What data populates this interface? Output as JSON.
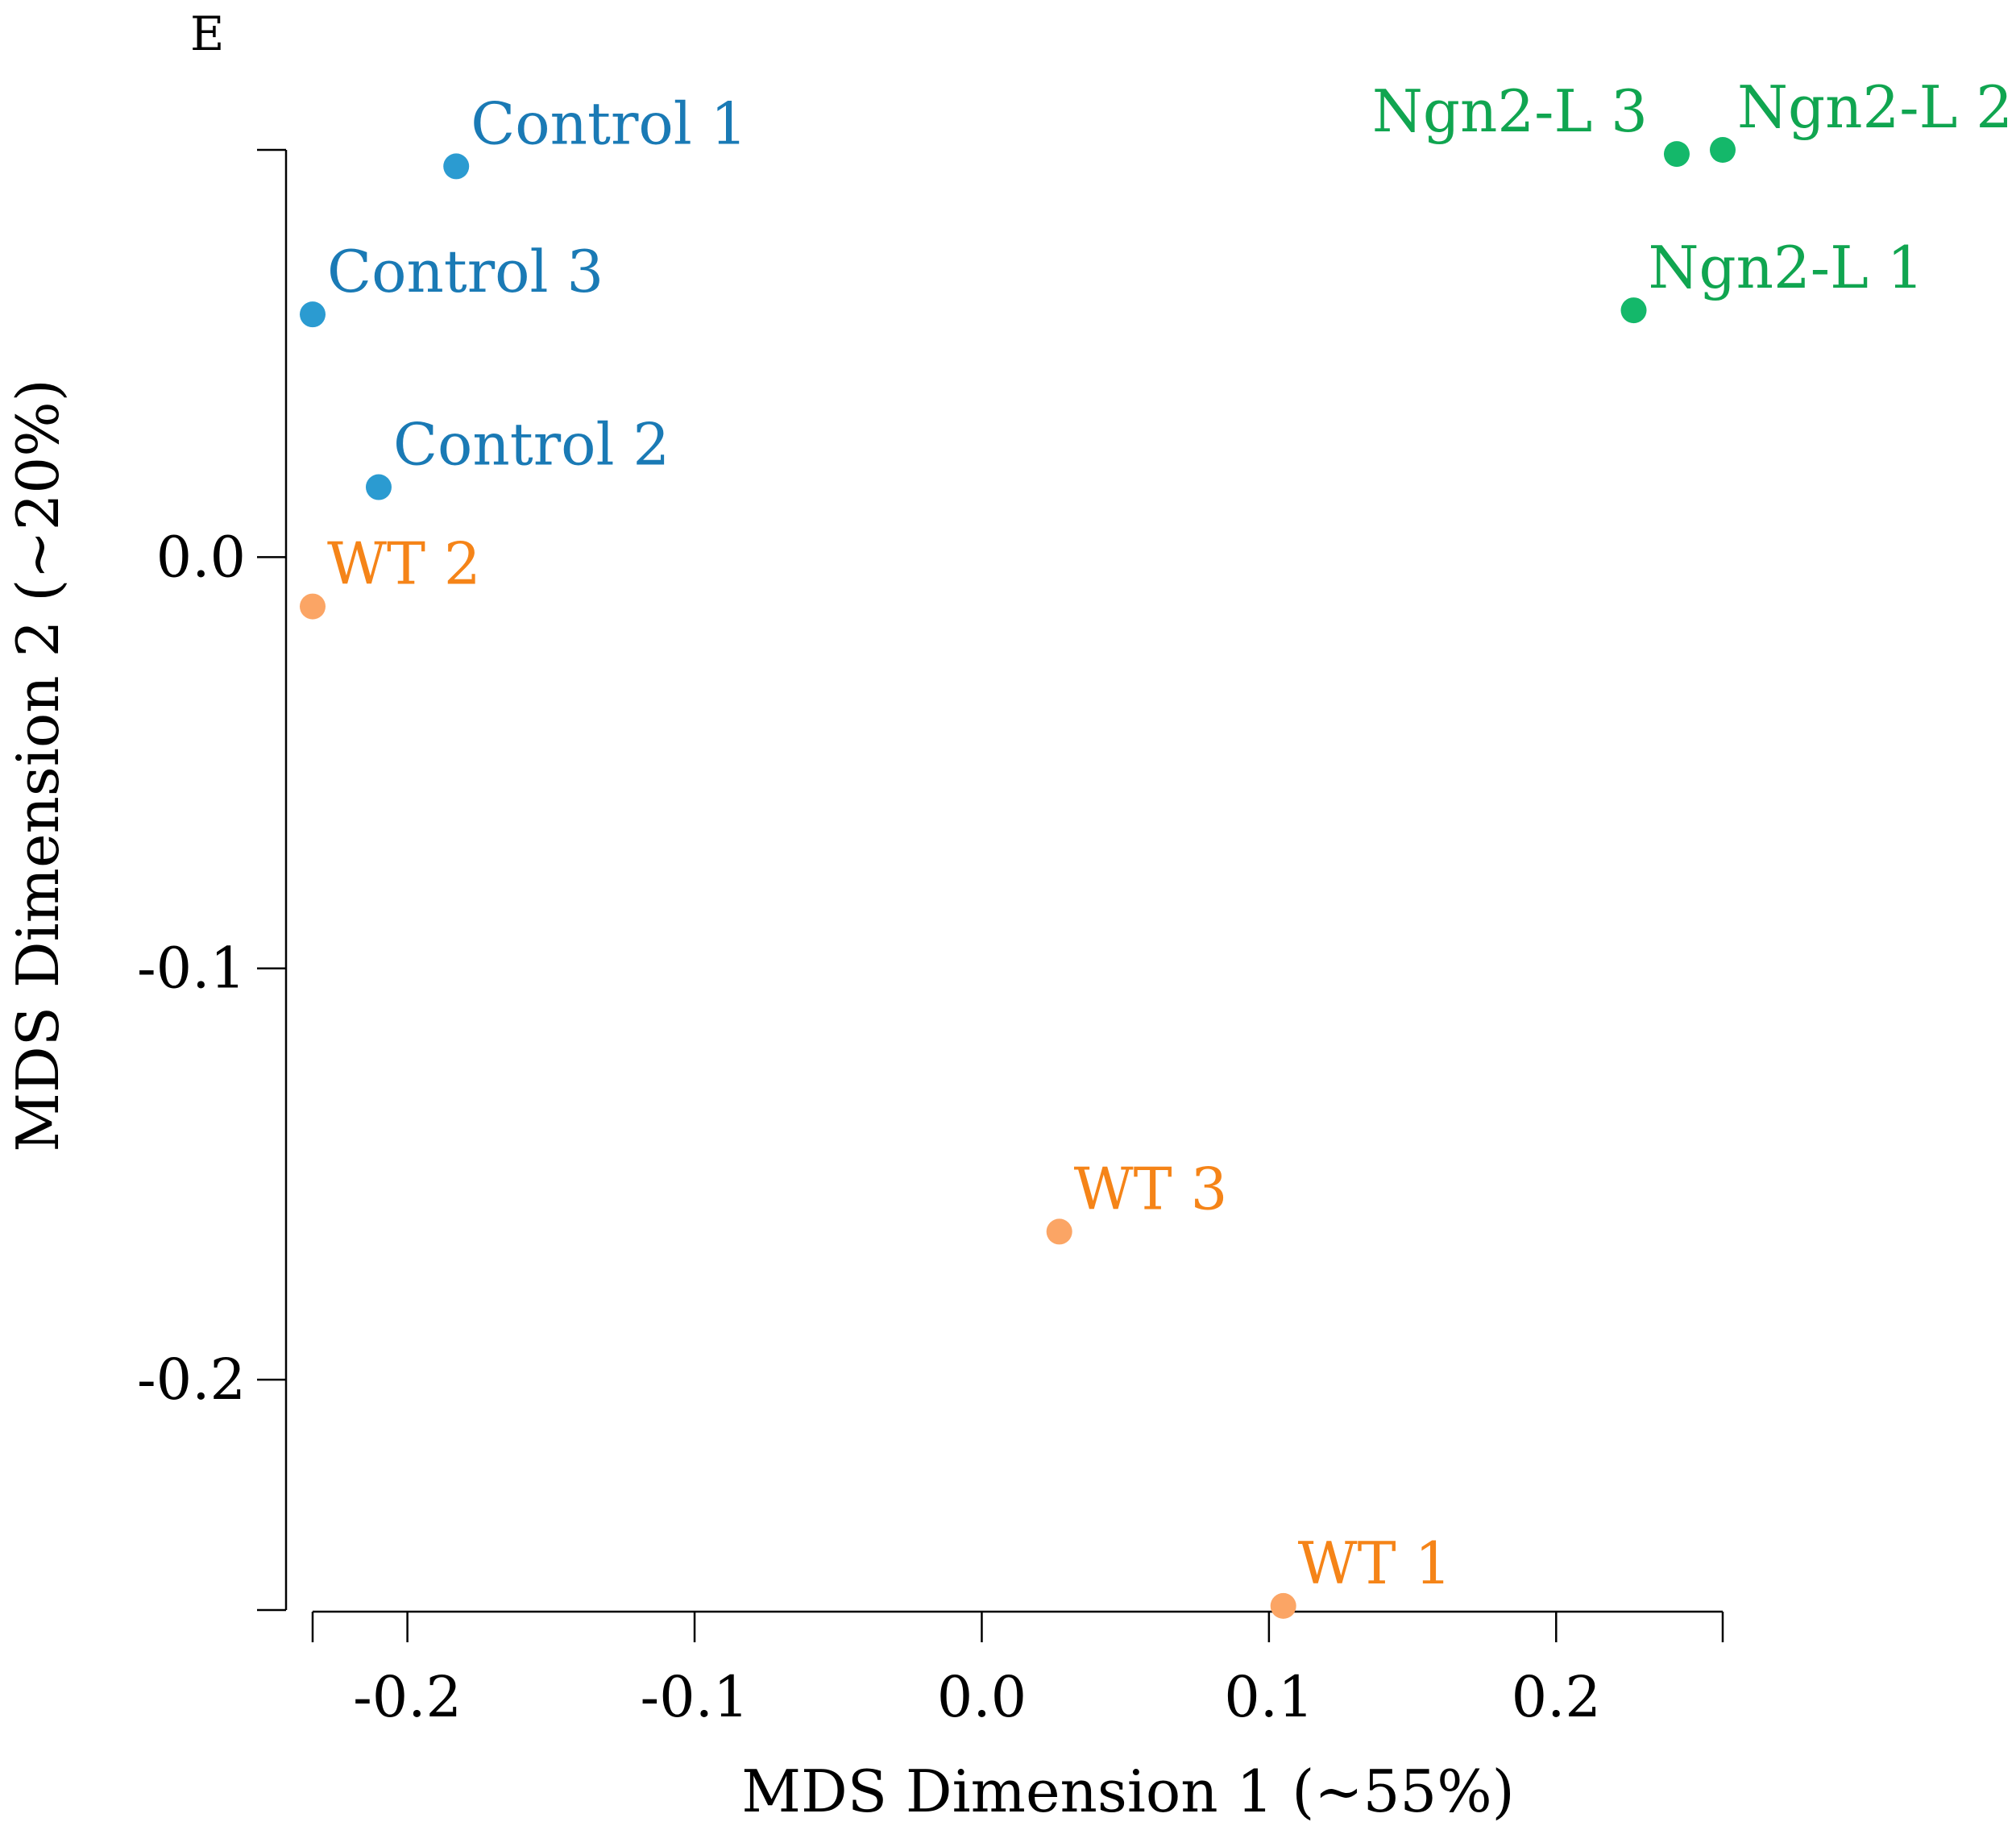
{
  "chart_data": {
    "type": "scatter",
    "panel_label": "E",
    "title": "",
    "xlabel": "MDS Dimension 1 (~55%)",
    "ylabel": "MDS Dimension 2 (~20%)",
    "xlim": [
      -0.233,
      0.258
    ],
    "ylim": [
      -0.256,
      0.099
    ],
    "x_ticks": [
      -0.2,
      -0.1,
      0.0,
      0.1,
      0.2
    ],
    "x_tick_labels": [
      "-0.2",
      "-0.1",
      "0.0",
      "0.1",
      "0.2"
    ],
    "y_ticks": [
      0.0,
      -0.1,
      -0.2
    ],
    "y_tick_labels": [
      "0.0",
      "-0.1",
      "-0.2"
    ],
    "grid": false,
    "groups": [
      {
        "name": "Control",
        "label_color": "#1a7ab5",
        "point_color": "#2b9bd1"
      },
      {
        "name": "Ngn2-L",
        "label_color": "#10a550",
        "point_color": "#14b86a"
      },
      {
        "name": "WT",
        "label_color": "#f58418",
        "point_color": "#fba565"
      }
    ],
    "points": [
      {
        "label": "Control 1",
        "group": "Control",
        "x": -0.183,
        "y": 0.095,
        "label_pos": "upper-right"
      },
      {
        "label": "Control 3",
        "group": "Control",
        "x": -0.233,
        "y": 0.059,
        "label_pos": "upper-right"
      },
      {
        "label": "Control 2",
        "group": "Control",
        "x": -0.21,
        "y": 0.017,
        "label_pos": "upper-right"
      },
      {
        "label": "WT 2",
        "group": "WT",
        "x": -0.233,
        "y": -0.012,
        "label_pos": "upper-right"
      },
      {
        "label": "WT 3",
        "group": "WT",
        "x": 0.027,
        "y": -0.164,
        "label_pos": "upper-right"
      },
      {
        "label": "WT 1",
        "group": "WT",
        "x": 0.105,
        "y": -0.255,
        "label_pos": "upper-right"
      },
      {
        "label": "Ngn2-L 3",
        "group": "Ngn2-L",
        "x": 0.242,
        "y": 0.098,
        "label_pos": "upper-left"
      },
      {
        "label": "Ngn2-L 2",
        "group": "Ngn2-L",
        "x": 0.258,
        "y": 0.099,
        "label_pos": "upper-right"
      },
      {
        "label": "Ngn2-L 1",
        "group": "Ngn2-L",
        "x": 0.227,
        "y": 0.06,
        "label_pos": "upper-right"
      }
    ]
  }
}
